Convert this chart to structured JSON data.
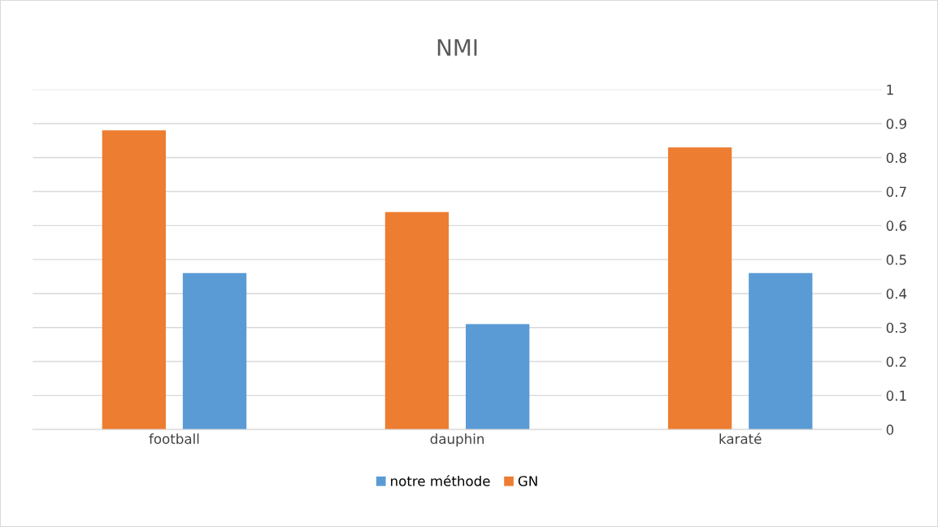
{
  "chart_data": {
    "type": "bar",
    "title": "NMI",
    "categories": [
      "football",
      "dauphin",
      "karaté"
    ],
    "series": [
      {
        "name": "GN",
        "color": "#ed7d31",
        "values": [
          0.88,
          0.64,
          0.83
        ]
      },
      {
        "name": "notre méthode",
        "color": "#5b9bd5",
        "values": [
          0.46,
          0.31,
          0.46
        ]
      }
    ],
    "ylim": [
      0,
      1
    ],
    "yticks": [
      0,
      0.1,
      0.2,
      0.3,
      0.4,
      0.5,
      0.6,
      0.7,
      0.8,
      0.9,
      1
    ],
    "grid": "y",
    "legend": "bottom"
  }
}
